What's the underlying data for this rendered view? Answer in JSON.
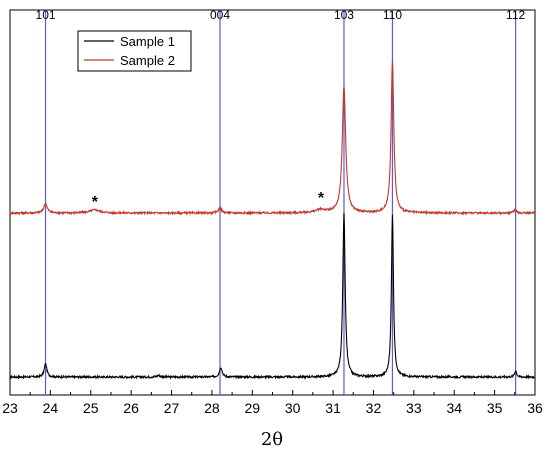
{
  "chart_data": {
    "type": "line",
    "xlabel": "2θ",
    "ylabel": "",
    "title": "",
    "xlim": [
      23,
      36
    ],
    "x_ticks": [
      23,
      24,
      25,
      26,
      27,
      28,
      29,
      30,
      31,
      32,
      33,
      34,
      35,
      36
    ],
    "y_ticks": [],
    "grid": false,
    "legend": {
      "placement": "top-left",
      "entries": [
        "Sample 1",
        "Sample 2"
      ]
    },
    "reference_lines": [
      {
        "label": "101",
        "x": 23.88
      },
      {
        "label": "004",
        "x": 28.2
      },
      {
        "label": "103",
        "x": 31.27
      },
      {
        "label": "110",
        "x": 32.47
      },
      {
        "label": "112",
        "x": 35.52
      }
    ],
    "annotations": [
      {
        "text": "*",
        "x": 25.1
      },
      {
        "text": "*",
        "x": 30.7
      }
    ],
    "series": [
      {
        "name": "Sample 1",
        "color": "#000000",
        "baseline": 0.0,
        "peaks": [
          {
            "x": 23.88,
            "height": 0.08,
            "width": 0.04
          },
          {
            "x": 26.68,
            "height": 0.01,
            "width": 0.05
          },
          {
            "x": 28.22,
            "height": 0.06,
            "width": 0.04
          },
          {
            "x": 31.27,
            "height": 1.0,
            "width": 0.035
          },
          {
            "x": 32.47,
            "height": 1.0,
            "width": 0.03
          },
          {
            "x": 35.52,
            "height": 0.04,
            "width": 0.03
          }
        ]
      },
      {
        "name": "Sample 2",
        "color": "#c0392b",
        "baseline": 1.0,
        "peaks": [
          {
            "x": 23.88,
            "height": 0.06,
            "width": 0.05
          },
          {
            "x": 25.1,
            "height": 0.02,
            "width": 0.15
          },
          {
            "x": 28.2,
            "height": 0.03,
            "width": 0.05
          },
          {
            "x": 30.7,
            "height": 0.02,
            "width": 0.15
          },
          {
            "x": 31.27,
            "height": 0.8,
            "width": 0.05
          },
          {
            "x": 32.47,
            "height": 0.96,
            "width": 0.04
          },
          {
            "x": 35.5,
            "height": 0.02,
            "width": 0.04
          }
        ]
      }
    ]
  }
}
